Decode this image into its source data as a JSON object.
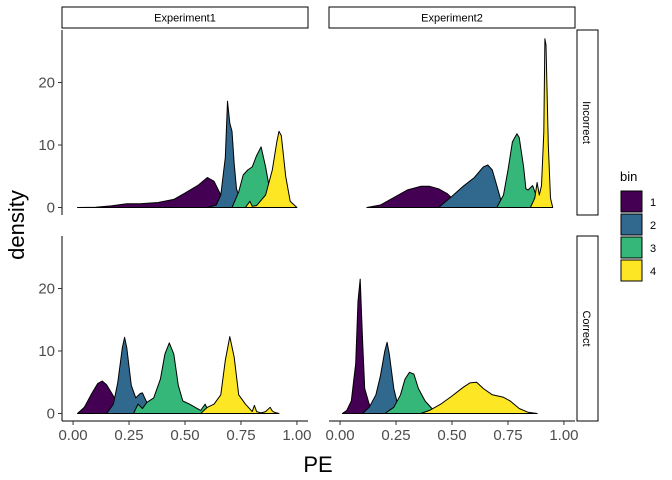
{
  "chart_data": {
    "type": "area",
    "subtype": "density (facet grid)",
    "xlabel": "PE",
    "ylabel": "density",
    "xlim": [
      0,
      1
    ],
    "ylim": [
      0,
      28
    ],
    "x_ticks": [
      "0.00",
      "0.25",
      "0.50",
      "0.75",
      "1.00"
    ],
    "y_ticks": [
      "0",
      "10",
      "20"
    ],
    "column_facets": [
      "Experiment1",
      "Experiment2"
    ],
    "row_facets": [
      "Incorrect",
      "Correct"
    ],
    "legend": {
      "title": "bin",
      "position": "right",
      "entries": [
        {
          "label": "1",
          "color": "#440154"
        },
        {
          "label": "2",
          "color": "#31688E"
        },
        {
          "label": "3",
          "color": "#35B779"
        },
        {
          "label": "4",
          "color": "#FDE725"
        }
      ]
    },
    "grid": false,
    "panels": [
      {
        "column": "Experiment1",
        "row": "Incorrect",
        "series": [
          {
            "bin": "1",
            "x": [
              0.02,
              0.1,
              0.17,
              0.24,
              0.3,
              0.38,
              0.45,
              0.5,
              0.56,
              0.6,
              0.63,
              0.66,
              0.68
            ],
            "y": [
              0,
              0.05,
              0.25,
              0.6,
              0.6,
              0.8,
              1.3,
              2.3,
              3.6,
              4.8,
              4.2,
              2.0,
              0
            ]
          },
          {
            "bin": "2",
            "x": [
              0.6,
              0.64,
              0.66,
              0.68,
              0.69,
              0.7,
              0.71,
              0.72,
              0.73,
              0.75,
              0.77
            ],
            "y": [
              0,
              0.4,
              2.0,
              8.0,
              17.0,
              13.5,
              12.2,
              7.0,
              3.0,
              0.8,
              0
            ]
          },
          {
            "bin": "3",
            "x": [
              0.71,
              0.74,
              0.76,
              0.78,
              0.8,
              0.82,
              0.84,
              0.86,
              0.88,
              0.9
            ],
            "y": [
              0,
              2.5,
              5.2,
              6.0,
              6.5,
              8.3,
              9.7,
              6.5,
              2.5,
              0
            ]
          },
          {
            "bin": "4",
            "x": [
              0.77,
              0.79,
              0.8,
              0.82,
              0.86,
              0.89,
              0.91,
              0.92,
              0.93,
              0.95,
              0.97,
              1.0
            ],
            "y": [
              0,
              1.0,
              0.2,
              0.3,
              2.0,
              6.0,
              10.5,
              12.2,
              11.5,
              5.0,
              1.0,
              0
            ]
          }
        ]
      },
      {
        "column": "Experiment2",
        "row": "Incorrect",
        "series": [
          {
            "bin": "1",
            "x": [
              0.12,
              0.18,
              0.24,
              0.3,
              0.36,
              0.4,
              0.44,
              0.48,
              0.52,
              0.56
            ],
            "y": [
              0,
              0.4,
              1.6,
              2.8,
              3.4,
              3.4,
              3.0,
              2.2,
              0.8,
              0
            ]
          },
          {
            "bin": "2",
            "x": [
              0.44,
              0.5,
              0.55,
              0.6,
              0.64,
              0.66,
              0.68,
              0.7,
              0.72,
              0.74
            ],
            "y": [
              0,
              1.8,
              3.4,
              4.8,
              6.5,
              6.8,
              6.0,
              3.5,
              1.0,
              0
            ]
          },
          {
            "bin": "3",
            "x": [
              0.7,
              0.73,
              0.75,
              0.77,
              0.79,
              0.8,
              0.82,
              0.83,
              0.84,
              0.86,
              0.88,
              0.9
            ],
            "y": [
              0,
              2.0,
              6.0,
              10.5,
              11.8,
              11.2,
              6.5,
              3.0,
              2.8,
              3.5,
              1.5,
              0
            ]
          },
          {
            "bin": "4",
            "x": [
              0.85,
              0.87,
              0.88,
              0.89,
              0.9,
              0.91,
              0.915,
              0.92,
              0.93,
              0.94,
              0.95
            ],
            "y": [
              0,
              1.5,
              4.0,
              2.0,
              3.5,
              12.0,
              27.0,
              26.0,
              10.0,
              1.5,
              0
            ]
          }
        ]
      },
      {
        "column": "Experiment1",
        "row": "Correct",
        "series": [
          {
            "bin": "1",
            "x": [
              0.02,
              0.05,
              0.08,
              0.11,
              0.13,
              0.15,
              0.17,
              0.19,
              0.21,
              0.23,
              0.25
            ],
            "y": [
              0,
              1.0,
              3.0,
              4.8,
              5.2,
              4.6,
              3.4,
              2.2,
              1.0,
              0.4,
              0
            ]
          },
          {
            "bin": "2",
            "x": [
              0.15,
              0.18,
              0.2,
              0.22,
              0.23,
              0.24,
              0.26,
              0.28,
              0.3,
              0.31,
              0.32,
              0.34,
              0.36
            ],
            "y": [
              0,
              1.5,
              5.0,
              10.5,
              12.2,
              10.5,
              4.5,
              2.5,
              3.2,
              3.3,
              2.5,
              1.0,
              0
            ]
          },
          {
            "bin": "3",
            "x": [
              0.27,
              0.29,
              0.31,
              0.33,
              0.36,
              0.39,
              0.41,
              0.43,
              0.45,
              0.47,
              0.49,
              0.52,
              0.55,
              0.57,
              0.59,
              0.61
            ],
            "y": [
              0,
              1.5,
              0.8,
              1.8,
              2.5,
              5.5,
              9.5,
              11.3,
              9.5,
              4.5,
              2.0,
              1.5,
              0.9,
              0.5,
              1.5,
              0
            ]
          },
          {
            "bin": "4",
            "x": [
              0.57,
              0.6,
              0.63,
              0.66,
              0.68,
              0.7,
              0.72,
              0.74,
              0.77,
              0.8,
              0.81,
              0.82,
              0.84,
              0.86,
              0.88,
              0.89,
              0.9,
              0.92
            ],
            "y": [
              0,
              1.0,
              1.5,
              3.0,
              8.5,
              12.3,
              9.0,
              3.0,
              1.5,
              0.3,
              1.3,
              0.3,
              0.1,
              0.3,
              1.0,
              0.4,
              0.2,
              0
            ]
          }
        ]
      },
      {
        "column": "Experiment2",
        "row": "Correct",
        "series": [
          {
            "bin": "1",
            "x": [
              0.01,
              0.03,
              0.05,
              0.07,
              0.08,
              0.09,
              0.1,
              0.11,
              0.13,
              0.15
            ],
            "y": [
              0,
              0.5,
              2.0,
              8.0,
              18.0,
              21.5,
              12.0,
              4.0,
              1.5,
              0
            ]
          },
          {
            "bin": "2",
            "x": [
              0.1,
              0.13,
              0.16,
              0.18,
              0.2,
              0.21,
              0.22,
              0.24,
              0.26,
              0.28
            ],
            "y": [
              0,
              1.0,
              3.0,
              6.0,
              10.0,
              11.4,
              9.5,
              4.0,
              1.0,
              0
            ]
          },
          {
            "bin": "3",
            "x": [
              0.2,
              0.24,
              0.27,
              0.29,
              0.31,
              0.33,
              0.35,
              0.38,
              0.41,
              0.44
            ],
            "y": [
              0,
              1.0,
              3.0,
              5.5,
              6.6,
              6.3,
              4.0,
              2.0,
              0.8,
              0
            ]
          },
          {
            "bin": "4",
            "x": [
              0.36,
              0.4,
              0.45,
              0.5,
              0.55,
              0.58,
              0.61,
              0.64,
              0.68,
              0.73,
              0.76,
              0.8,
              0.84,
              0.88
            ],
            "y": [
              0,
              0.5,
              1.5,
              2.8,
              4.2,
              4.9,
              5.0,
              4.0,
              3.0,
              2.6,
              2.0,
              0.8,
              0.2,
              0
            ]
          }
        ]
      }
    ]
  }
}
